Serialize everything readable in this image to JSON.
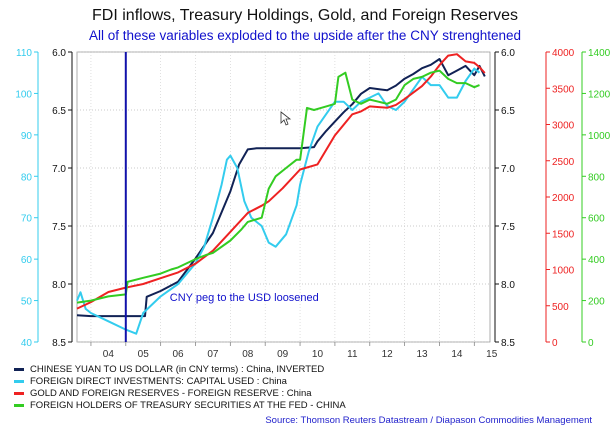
{
  "chart_data": {
    "type": "line",
    "title": "FDI inflows, Treasury Holdings, Gold, and Foreign Reserves",
    "subtitle": "All of these variables exploded to the upside after the CNY strenghtened",
    "source": "Source: Thomson Reuters Datastream / Diapason Commodities Management",
    "x_tick_labels": [
      "04",
      "05",
      "06",
      "07",
      "08",
      "09",
      "10",
      "11",
      "12",
      "13",
      "14",
      "15"
    ],
    "x_range": [
      2003.6,
      2015.45
    ],
    "annotation": {
      "text": "CNY peg to the USD loosened",
      "x": 2005.0
    },
    "axes": {
      "fdi": {
        "side": "left-outer",
        "color": "#33ccee",
        "range": [
          40,
          110
        ],
        "ticks": [
          40,
          50,
          60,
          70,
          80,
          90,
          100,
          110
        ]
      },
      "cny": {
        "side": "left-inner",
        "color": "#111111",
        "range": [
          8.5,
          6.0
        ],
        "ticks": [
          "8.5",
          "8.0",
          "7.5",
          "7.0",
          "6.5",
          "6.0"
        ],
        "inverted": true
      },
      "cny_r": {
        "side": "right-inner",
        "color": "#111111",
        "range": [
          8.5,
          6.0
        ],
        "ticks": [
          "8.5",
          "8.0",
          "7.5",
          "7.0",
          "6.5",
          "6.0"
        ],
        "inverted": true
      },
      "reserves": {
        "side": "right-mid",
        "color": "#ee2222",
        "range": [
          0,
          4000
        ],
        "ticks": [
          0,
          500,
          1000,
          1500,
          2000,
          2500,
          3000,
          3500,
          4000
        ]
      },
      "treasury": {
        "side": "right-outer",
        "color": "#33cc22",
        "range": [
          0,
          1400
        ],
        "ticks": [
          0,
          200,
          400,
          600,
          800,
          1000,
          1200,
          1400
        ]
      }
    },
    "series": [
      {
        "name": "CHINESE YUAN TO US DOLLAR (in CNY terms) : China, INVERTED",
        "axis": "cny",
        "color": "#112255",
        "points": [
          [
            2003.6,
            8.27
          ],
          [
            2004.0,
            8.277
          ],
          [
            2004.5,
            8.277
          ],
          [
            2005.0,
            8.277
          ],
          [
            2005.55,
            8.277
          ],
          [
            2005.6,
            8.11
          ],
          [
            2006.0,
            8.06
          ],
          [
            2006.5,
            7.98
          ],
          [
            2007.0,
            7.78
          ],
          [
            2007.5,
            7.56
          ],
          [
            2008.0,
            7.2
          ],
          [
            2008.25,
            6.97
          ],
          [
            2008.5,
            6.84
          ],
          [
            2008.75,
            6.83
          ],
          [
            2009.0,
            6.83
          ],
          [
            2009.5,
            6.83
          ],
          [
            2010.0,
            6.83
          ],
          [
            2010.4,
            6.82
          ],
          [
            2010.5,
            6.77
          ],
          [
            2010.75,
            6.68
          ],
          [
            2011.0,
            6.6
          ],
          [
            2011.25,
            6.52
          ],
          [
            2011.5,
            6.45
          ],
          [
            2011.75,
            6.36
          ],
          [
            2012.0,
            6.31
          ],
          [
            2012.5,
            6.33
          ],
          [
            2012.75,
            6.29
          ],
          [
            2013.0,
            6.23
          ],
          [
            2013.25,
            6.19
          ],
          [
            2013.5,
            6.14
          ],
          [
            2013.75,
            6.11
          ],
          [
            2014.0,
            6.06
          ],
          [
            2014.25,
            6.2
          ],
          [
            2014.5,
            6.16
          ],
          [
            2014.75,
            6.12
          ],
          [
            2015.0,
            6.2
          ],
          [
            2015.15,
            6.12
          ],
          [
            2015.3,
            6.21
          ]
        ]
      },
      {
        "name": "FOREIGN DIRECT INVESTMENTS: CAPITAL USED : China",
        "axis": "fdi",
        "color": "#33ccee",
        "points": [
          [
            2003.6,
            50
          ],
          [
            2003.7,
            52
          ],
          [
            2003.85,
            48
          ],
          [
            2004.0,
            47
          ],
          [
            2004.5,
            45
          ],
          [
            2005.0,
            43
          ],
          [
            2005.3,
            42
          ],
          [
            2005.5,
            47
          ],
          [
            2006.0,
            51
          ],
          [
            2006.5,
            54
          ],
          [
            2007.0,
            59
          ],
          [
            2007.25,
            63
          ],
          [
            2007.5,
            70
          ],
          [
            2007.75,
            78
          ],
          [
            2007.9,
            84
          ],
          [
            2008.0,
            85
          ],
          [
            2008.2,
            82
          ],
          [
            2008.4,
            74
          ],
          [
            2008.6,
            70
          ],
          [
            2008.9,
            68
          ],
          [
            2009.1,
            64
          ],
          [
            2009.3,
            63
          ],
          [
            2009.6,
            66
          ],
          [
            2009.9,
            73
          ],
          [
            2010.0,
            78
          ],
          [
            2010.25,
            86
          ],
          [
            2010.5,
            92
          ],
          [
            2010.75,
            95
          ],
          [
            2011.0,
            98
          ],
          [
            2011.25,
            98
          ],
          [
            2011.5,
            96
          ],
          [
            2011.75,
            98
          ],
          [
            2012.0,
            99
          ],
          [
            2012.25,
            100
          ],
          [
            2012.5,
            97
          ],
          [
            2012.75,
            96
          ],
          [
            2013.0,
            98
          ],
          [
            2013.25,
            101
          ],
          [
            2013.5,
            104
          ],
          [
            2013.75,
            102
          ],
          [
            2014.0,
            102
          ],
          [
            2014.25,
            99
          ],
          [
            2014.5,
            99
          ],
          [
            2014.75,
            103
          ],
          [
            2015.0,
            106
          ],
          [
            2015.15,
            105
          ]
        ]
      },
      {
        "name": "GOLD AND FOREIGN RESERVES - FOREIGN RESERVE : China",
        "axis": "reserves",
        "color": "#ee2222",
        "points": [
          [
            2003.6,
            460
          ],
          [
            2004.0,
            550
          ],
          [
            2004.5,
            690
          ],
          [
            2005.0,
            750
          ],
          [
            2005.5,
            800
          ],
          [
            2006.0,
            880
          ],
          [
            2006.5,
            960
          ],
          [
            2007.0,
            1080
          ],
          [
            2007.5,
            1260
          ],
          [
            2008.0,
            1520
          ],
          [
            2008.5,
            1780
          ],
          [
            2008.9,
            1880
          ],
          [
            2009.1,
            1940
          ],
          [
            2009.5,
            2120
          ],
          [
            2010.0,
            2380
          ],
          [
            2010.5,
            2450
          ],
          [
            2011.0,
            2850
          ],
          [
            2011.5,
            3140
          ],
          [
            2011.75,
            3180
          ],
          [
            2012.0,
            3250
          ],
          [
            2012.5,
            3230
          ],
          [
            2012.75,
            3270
          ],
          [
            2013.0,
            3350
          ],
          [
            2013.5,
            3530
          ],
          [
            2013.75,
            3660
          ],
          [
            2014.0,
            3820
          ],
          [
            2014.25,
            3950
          ],
          [
            2014.5,
            3970
          ],
          [
            2014.75,
            3870
          ],
          [
            2015.0,
            3850
          ],
          [
            2015.15,
            3790
          ],
          [
            2015.3,
            3710
          ]
        ]
      },
      {
        "name": "FOREIGN HOLDERS OF TREASURY SECURITIES AT THE FED - CHINA",
        "axis": "treasury",
        "color": "#33cc22",
        "points": [
          [
            2003.6,
            190
          ],
          [
            2004.0,
            200
          ],
          [
            2004.5,
            220
          ],
          [
            2005.0,
            230
          ],
          [
            2005.05,
            290
          ],
          [
            2005.5,
            310
          ],
          [
            2006.0,
            330
          ],
          [
            2006.3,
            350
          ],
          [
            2006.5,
            360
          ],
          [
            2007.0,
            400
          ],
          [
            2007.3,
            420
          ],
          [
            2007.5,
            430
          ],
          [
            2008.0,
            490
          ],
          [
            2008.3,
            540
          ],
          [
            2008.5,
            580
          ],
          [
            2008.9,
            600
          ],
          [
            2009.1,
            740
          ],
          [
            2009.3,
            800
          ],
          [
            2009.6,
            840
          ],
          [
            2009.9,
            880
          ],
          [
            2010.0,
            880
          ],
          [
            2010.2,
            1130
          ],
          [
            2010.4,
            1120
          ],
          [
            2010.6,
            1130
          ],
          [
            2010.8,
            1140
          ],
          [
            2011.0,
            1150
          ],
          [
            2011.1,
            1280
          ],
          [
            2011.3,
            1300
          ],
          [
            2011.5,
            1170
          ],
          [
            2011.75,
            1150
          ],
          [
            2012.0,
            1170
          ],
          [
            2012.25,
            1160
          ],
          [
            2012.5,
            1150
          ],
          [
            2012.75,
            1170
          ],
          [
            2013.0,
            1240
          ],
          [
            2013.25,
            1270
          ],
          [
            2013.5,
            1280
          ],
          [
            2013.75,
            1300
          ],
          [
            2014.0,
            1310
          ],
          [
            2014.25,
            1270
          ],
          [
            2014.5,
            1250
          ],
          [
            2014.75,
            1250
          ],
          [
            2015.0,
            1230
          ],
          [
            2015.15,
            1240
          ]
        ]
      }
    ]
  }
}
